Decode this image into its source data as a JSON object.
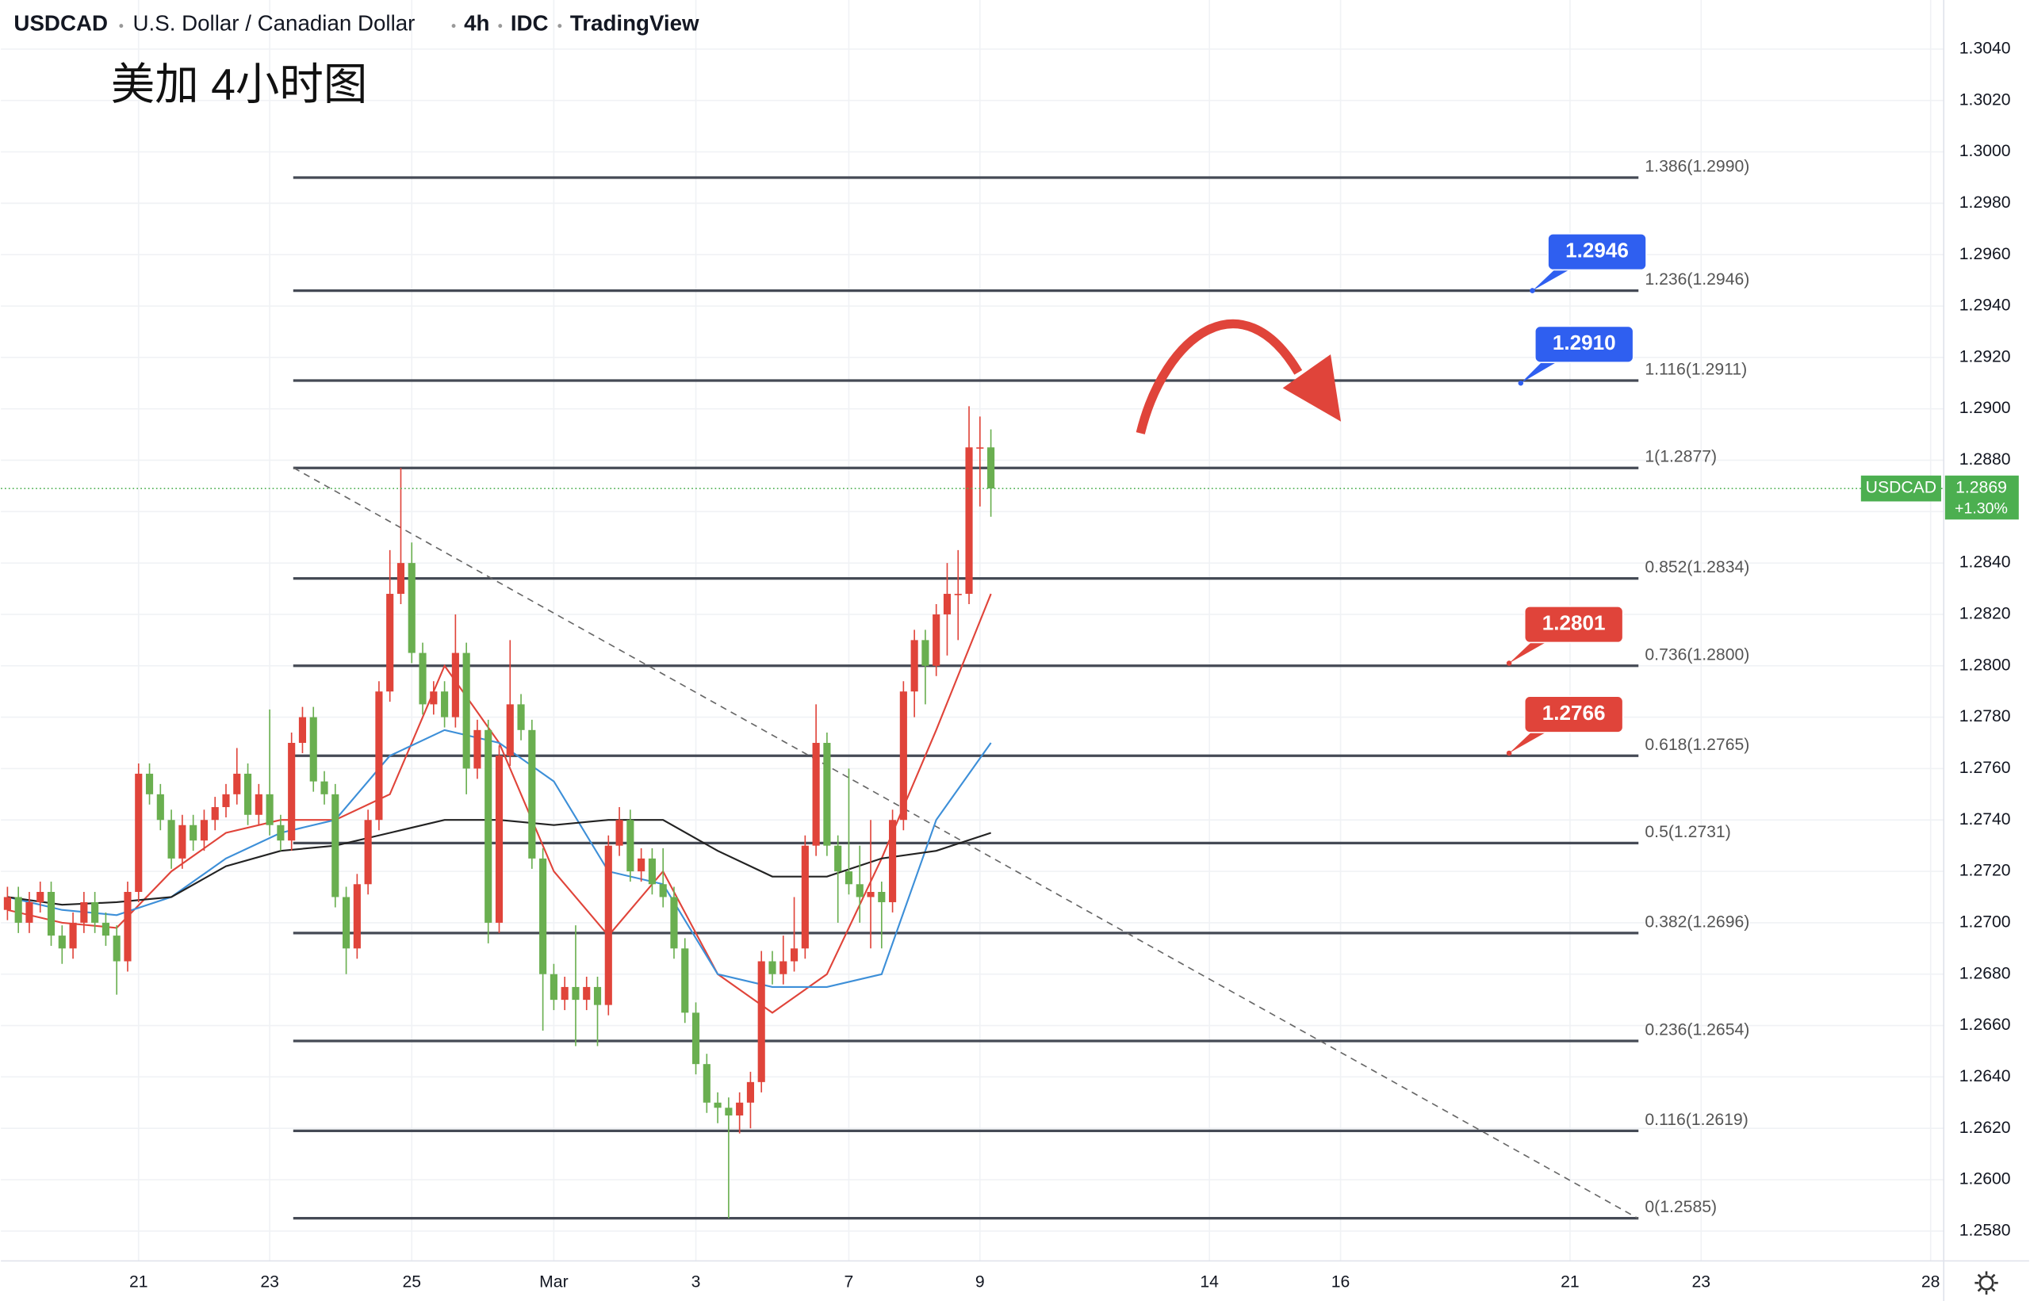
{
  "header": {
    "symbol": "USDCAD",
    "name": "U.S. Dollar / Canadian Dollar",
    "interval": "4h",
    "source": "IDC",
    "platform": "TradingView"
  },
  "chart_data": {
    "type": "candlestick",
    "title": "美加 4小时图",
    "xlim": [
      -0.6,
      177.2
    ],
    "ylim": [
      1.25684,
      1.30591
    ],
    "grid": true,
    "up_color": "#e0443a",
    "down_color": "#6aaf50",
    "xticks": [
      {
        "value": 12,
        "label": "21"
      },
      {
        "value": 24,
        "label": "23"
      },
      {
        "value": 37,
        "label": "25"
      },
      {
        "value": 50,
        "label": "Mar"
      },
      {
        "value": 63,
        "label": "3"
      },
      {
        "value": 77,
        "label": "7"
      },
      {
        "value": 89,
        "label": "9"
      },
      {
        "value": 110,
        "label": "14"
      },
      {
        "value": 122,
        "label": "16"
      },
      {
        "value": 143,
        "label": "21"
      },
      {
        "value": 155,
        "label": "23"
      },
      {
        "value": 176,
        "label": "28"
      }
    ],
    "yticks": [
      {
        "value": 1.258,
        "label": "1.2580"
      },
      {
        "value": 1.26,
        "label": "1.2600"
      },
      {
        "value": 1.262,
        "label": "1.2620"
      },
      {
        "value": 1.264,
        "label": "1.2640"
      },
      {
        "value": 1.266,
        "label": "1.2660"
      },
      {
        "value": 1.268,
        "label": "1.2680"
      },
      {
        "value": 1.27,
        "label": "1.2700"
      },
      {
        "value": 1.272,
        "label": "1.2720"
      },
      {
        "value": 1.274,
        "label": "1.2740"
      },
      {
        "value": 1.276,
        "label": "1.2760"
      },
      {
        "value": 1.278,
        "label": "1.2780"
      },
      {
        "value": 1.28,
        "label": "1.2800"
      },
      {
        "value": 1.282,
        "label": "1.2820"
      },
      {
        "value": 1.284,
        "label": "1.2840"
      },
      {
        "value": 1.286,
        "label": "1.2860"
      },
      {
        "value": 1.288,
        "label": "1.2880"
      },
      {
        "value": 1.29,
        "label": "1.2900"
      },
      {
        "value": 1.292,
        "label": "1.2920"
      },
      {
        "value": 1.294,
        "label": "1.2940"
      },
      {
        "value": 1.296,
        "label": "1.2960"
      },
      {
        "value": 1.298,
        "label": "1.2980"
      },
      {
        "value": 1.3,
        "label": "1.3000"
      },
      {
        "value": 1.302,
        "label": "1.3020"
      },
      {
        "value": 1.304,
        "label": "1.3040"
      }
    ],
    "candles": [
      [
        1.2705,
        1.2714,
        1.2701,
        1.271
      ],
      [
        1.271,
        1.2714,
        1.2696,
        1.27
      ],
      [
        1.27,
        1.2712,
        1.2696,
        1.2708
      ],
      [
        1.2708,
        1.2716,
        1.2704,
        1.2712
      ],
      [
        1.2712,
        1.2716,
        1.2691,
        1.2695
      ],
      [
        1.2695,
        1.2699,
        1.2684,
        1.269
      ],
      [
        1.269,
        1.2704,
        1.2686,
        1.27
      ],
      [
        1.27,
        1.2712,
        1.2696,
        1.2708
      ],
      [
        1.2708,
        1.2712,
        1.2696,
        1.27
      ],
      [
        1.27,
        1.2704,
        1.2691,
        1.2695
      ],
      [
        1.2695,
        1.2699,
        1.2672,
        1.2685
      ],
      [
        1.2685,
        1.2716,
        1.2681,
        1.2712
      ],
      [
        1.2712,
        1.2762,
        1.2708,
        1.2758
      ],
      [
        1.2758,
        1.2762,
        1.2746,
        1.275
      ],
      [
        1.275,
        1.2754,
        1.2736,
        1.274
      ],
      [
        1.274,
        1.2744,
        1.2721,
        1.2725
      ],
      [
        1.2725,
        1.2742,
        1.2721,
        1.2738
      ],
      [
        1.2738,
        1.2742,
        1.2728,
        1.2732
      ],
      [
        1.2732,
        1.2744,
        1.2728,
        1.274
      ],
      [
        1.274,
        1.2749,
        1.2736,
        1.2745
      ],
      [
        1.2745,
        1.2754,
        1.2741,
        1.275
      ],
      [
        1.275,
        1.2768,
        1.2746,
        1.2758
      ],
      [
        1.2758,
        1.2762,
        1.2738,
        1.2742
      ],
      [
        1.2742,
        1.2754,
        1.2738,
        1.275
      ],
      [
        1.275,
        1.2783,
        1.2734,
        1.2738
      ],
      [
        1.2738,
        1.2742,
        1.2728,
        1.2732
      ],
      [
        1.2732,
        1.2774,
        1.2728,
        1.277
      ],
      [
        1.277,
        1.2784,
        1.2766,
        1.278
      ],
      [
        1.278,
        1.2784,
        1.2751,
        1.2755
      ],
      [
        1.2755,
        1.2759,
        1.2746,
        1.275
      ],
      [
        1.275,
        1.2754,
        1.2706,
        1.271
      ],
      [
        1.271,
        1.2714,
        1.268,
        1.269
      ],
      [
        1.269,
        1.2719,
        1.2686,
        1.2715
      ],
      [
        1.2715,
        1.2744,
        1.2711,
        1.274
      ],
      [
        1.274,
        1.2794,
        1.2736,
        1.279
      ],
      [
        1.279,
        1.2845,
        1.2786,
        1.2828
      ],
      [
        1.2828,
        1.2877,
        1.2824,
        1.284
      ],
      [
        1.284,
        1.2848,
        1.2801,
        1.2805
      ],
      [
        1.2805,
        1.2809,
        1.2781,
        1.2785
      ],
      [
        1.2785,
        1.2794,
        1.2781,
        1.279
      ],
      [
        1.279,
        1.2794,
        1.2776,
        1.278
      ],
      [
        1.278,
        1.282,
        1.2776,
        1.2805
      ],
      [
        1.2805,
        1.2809,
        1.275,
        1.276
      ],
      [
        1.276,
        1.2779,
        1.2756,
        1.2775
      ],
      [
        1.2775,
        1.2779,
        1.2692,
        1.27
      ],
      [
        1.27,
        1.2769,
        1.2696,
        1.2765
      ],
      [
        1.2765,
        1.281,
        1.2761,
        1.2785
      ],
      [
        1.2785,
        1.2789,
        1.2771,
        1.2775
      ],
      [
        1.2775,
        1.2779,
        1.2721,
        1.2725
      ],
      [
        1.2725,
        1.2729,
        1.2658,
        1.268
      ],
      [
        1.268,
        1.2684,
        1.2666,
        1.267
      ],
      [
        1.267,
        1.2679,
        1.2666,
        1.2675
      ],
      [
        1.2675,
        1.2699,
        1.2652,
        1.267
      ],
      [
        1.267,
        1.2679,
        1.2666,
        1.2675
      ],
      [
        1.2675,
        1.2679,
        1.2652,
        1.2668
      ],
      [
        1.2668,
        1.2734,
        1.2664,
        1.273
      ],
      [
        1.273,
        1.2745,
        1.2726,
        1.274
      ],
      [
        1.274,
        1.2744,
        1.2716,
        1.272
      ],
      [
        1.272,
        1.2729,
        1.2716,
        1.2725
      ],
      [
        1.2725,
        1.2729,
        1.2711,
        1.2715
      ],
      [
        1.2715,
        1.2729,
        1.2706,
        1.271
      ],
      [
        1.271,
        1.2714,
        1.2686,
        1.269
      ],
      [
        1.269,
        1.2694,
        1.2661,
        1.2665
      ],
      [
        1.2665,
        1.2669,
        1.2641,
        1.2645
      ],
      [
        1.2645,
        1.2649,
        1.2626,
        1.263
      ],
      [
        1.263,
        1.2634,
        1.2622,
        1.2628
      ],
      [
        1.2628,
        1.2632,
        1.2585,
        1.2625
      ],
      [
        1.2625,
        1.2634,
        1.2618,
        1.263
      ],
      [
        1.263,
        1.2642,
        1.262,
        1.2638
      ],
      [
        1.2638,
        1.2689,
        1.2634,
        1.2685
      ],
      [
        1.2685,
        1.2689,
        1.2676,
        1.268
      ],
      [
        1.268,
        1.2695,
        1.2676,
        1.2685
      ],
      [
        1.2685,
        1.271,
        1.2681,
        1.269
      ],
      [
        1.269,
        1.2734,
        1.2686,
        1.273
      ],
      [
        1.273,
        1.2785,
        1.2726,
        1.277
      ],
      [
        1.277,
        1.2774,
        1.2726,
        1.273
      ],
      [
        1.273,
        1.2734,
        1.27,
        1.272
      ],
      [
        1.272,
        1.276,
        1.2711,
        1.2715
      ],
      [
        1.2715,
        1.273,
        1.27,
        1.271
      ],
      [
        1.271,
        1.274,
        1.269,
        1.2712
      ],
      [
        1.2712,
        1.2716,
        1.269,
        1.2708
      ],
      [
        1.2708,
        1.2744,
        1.2704,
        1.274
      ],
      [
        1.274,
        1.2794,
        1.2736,
        1.279
      ],
      [
        1.279,
        1.2814,
        1.278,
        1.281
      ],
      [
        1.281,
        1.2814,
        1.2785,
        1.28
      ],
      [
        1.28,
        1.2824,
        1.2796,
        1.282
      ],
      [
        1.282,
        1.284,
        1.2804,
        1.2828
      ],
      [
        1.2828,
        1.2845,
        1.281,
        1.2828
      ],
      [
        1.2828,
        1.2901,
        1.2824,
        1.2885
      ],
      [
        1.2885,
        1.2897,
        1.2862,
        1.2885
      ],
      [
        1.2885,
        1.2892,
        1.2858,
        1.2869
      ]
    ],
    "series": [
      {
        "color": "#e0443a",
        "x": [
          0,
          5,
          10,
          15,
          20,
          25,
          30,
          35,
          40,
          45,
          50,
          55,
          60,
          65,
          70,
          75,
          80,
          85,
          90
        ],
        "values": [
          1.2705,
          1.27,
          1.2698,
          1.272,
          1.2735,
          1.274,
          1.274,
          1.275,
          1.28,
          1.277,
          1.272,
          1.2695,
          1.272,
          1.268,
          1.2665,
          1.268,
          1.2725,
          1.2775,
          1.2828
        ]
      },
      {
        "color": "#3d8fd8",
        "x": [
          0,
          5,
          10,
          15,
          20,
          25,
          30,
          35,
          40,
          45,
          50,
          55,
          60,
          65,
          70,
          75,
          80,
          85,
          90
        ],
        "values": [
          1.271,
          1.2705,
          1.2703,
          1.271,
          1.2725,
          1.2735,
          1.274,
          1.2765,
          1.2775,
          1.277,
          1.2755,
          1.272,
          1.2715,
          1.268,
          1.2675,
          1.2675,
          1.268,
          1.274,
          1.277
        ]
      },
      {
        "color": "#222222",
        "x": [
          0,
          5,
          10,
          15,
          20,
          25,
          30,
          35,
          40,
          45,
          50,
          55,
          60,
          65,
          70,
          75,
          80,
          85,
          90
        ],
        "values": [
          1.271,
          1.2707,
          1.2708,
          1.271,
          1.2722,
          1.2728,
          1.273,
          1.2735,
          1.274,
          1.274,
          1.2738,
          1.274,
          1.274,
          1.2728,
          1.2718,
          1.2718,
          1.2725,
          1.2728,
          1.2735
        ]
      }
    ],
    "fib_levels": [
      {
        "value": 1.299,
        "label": "1.386(1.2990)"
      },
      {
        "value": 1.2946,
        "label": "1.236(1.2946)"
      },
      {
        "value": 1.2911,
        "label": "1.116(1.2911)"
      },
      {
        "value": 1.2877,
        "label": "1(1.2877)"
      },
      {
        "value": 1.2834,
        "label": "0.852(1.2834)"
      },
      {
        "value": 1.28,
        "label": "0.736(1.2800)"
      },
      {
        "value": 1.2765,
        "label": "0.618(1.2765)"
      },
      {
        "value": 1.2731,
        "label": "0.5(1.2731)"
      },
      {
        "value": 1.2696,
        "label": "0.382(1.2696)"
      },
      {
        "value": 1.2654,
        "label": "0.236(1.2654)"
      },
      {
        "value": 1.2619,
        "label": "0.116(1.2619)"
      },
      {
        "value": 1.2585,
        "label": "0(1.2585)"
      }
    ],
    "trendline": {
      "x": [
        26.2,
        149.2
      ],
      "values": [
        1.2877,
        1.2585
      ]
    },
    "callouts": [
      {
        "value": 1.2946,
        "label": "1.2946",
        "color": "#2f5ff0"
      },
      {
        "value": 1.291,
        "label": "1.2910",
        "color": "#2f5ff0"
      },
      {
        "value": 1.2801,
        "label": "1.2801",
        "color": "#e0443a"
      },
      {
        "value": 1.2766,
        "label": "1.2766",
        "color": "#e0443a"
      }
    ],
    "last_price": {
      "symbol": "USDCAD",
      "value": 1.2869,
      "label": "1.2869",
      "change": "+1.30%",
      "color": "#4caf50"
    }
  }
}
